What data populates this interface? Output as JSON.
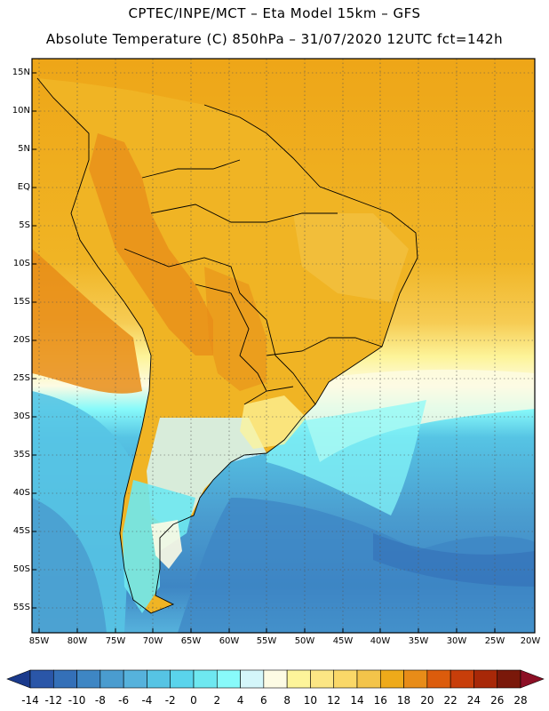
{
  "header": {
    "line1": "CPTEC/INPE/MCT –  Eta Model 15km – GFS",
    "line2": "Absolute Temperature (C) 850hPa – 31/07/2020 12UTC fct=142h"
  },
  "map": {
    "lat_labels": [
      "15N",
      "10N",
      "5N",
      "EQ",
      "5S",
      "10S",
      "15S",
      "20S",
      "25S",
      "30S",
      "35S",
      "40S",
      "45S",
      "50S",
      "55S"
    ],
    "lon_labels": [
      "85W",
      "80W",
      "75W",
      "70W",
      "65W",
      "60W",
      "55W",
      "50W",
      "45W",
      "40W",
      "35W",
      "30W",
      "25W",
      "20W"
    ],
    "lat_range": [
      15,
      -57
    ],
    "lon_range": [
      -85,
      -20
    ]
  },
  "colorbar": {
    "labels": [
      "-14",
      "-12",
      "-10",
      "-8",
      "-6",
      "-4",
      "-2",
      "0",
      "2",
      "4",
      "6",
      "8",
      "10",
      "12",
      "14",
      "16",
      "18",
      "20",
      "22",
      "24",
      "26",
      "28"
    ],
    "colors": [
      "#1a3a8c",
      "#2a56a8",
      "#3470b8",
      "#3e86c4",
      "#4a9ccf",
      "#56b2dc",
      "#56c4e4",
      "#5ad4ec",
      "#6ee8f0",
      "#88fafa",
      "#d4f6fa",
      "#fdfbe4",
      "#fdf49a",
      "#fce684",
      "#fad868",
      "#f3c44a",
      "#eeaa1a",
      "#e88c18",
      "#dc5c0c",
      "#c83e0a",
      "#a82808",
      "#7a180a",
      "#8c0f25"
    ]
  }
}
